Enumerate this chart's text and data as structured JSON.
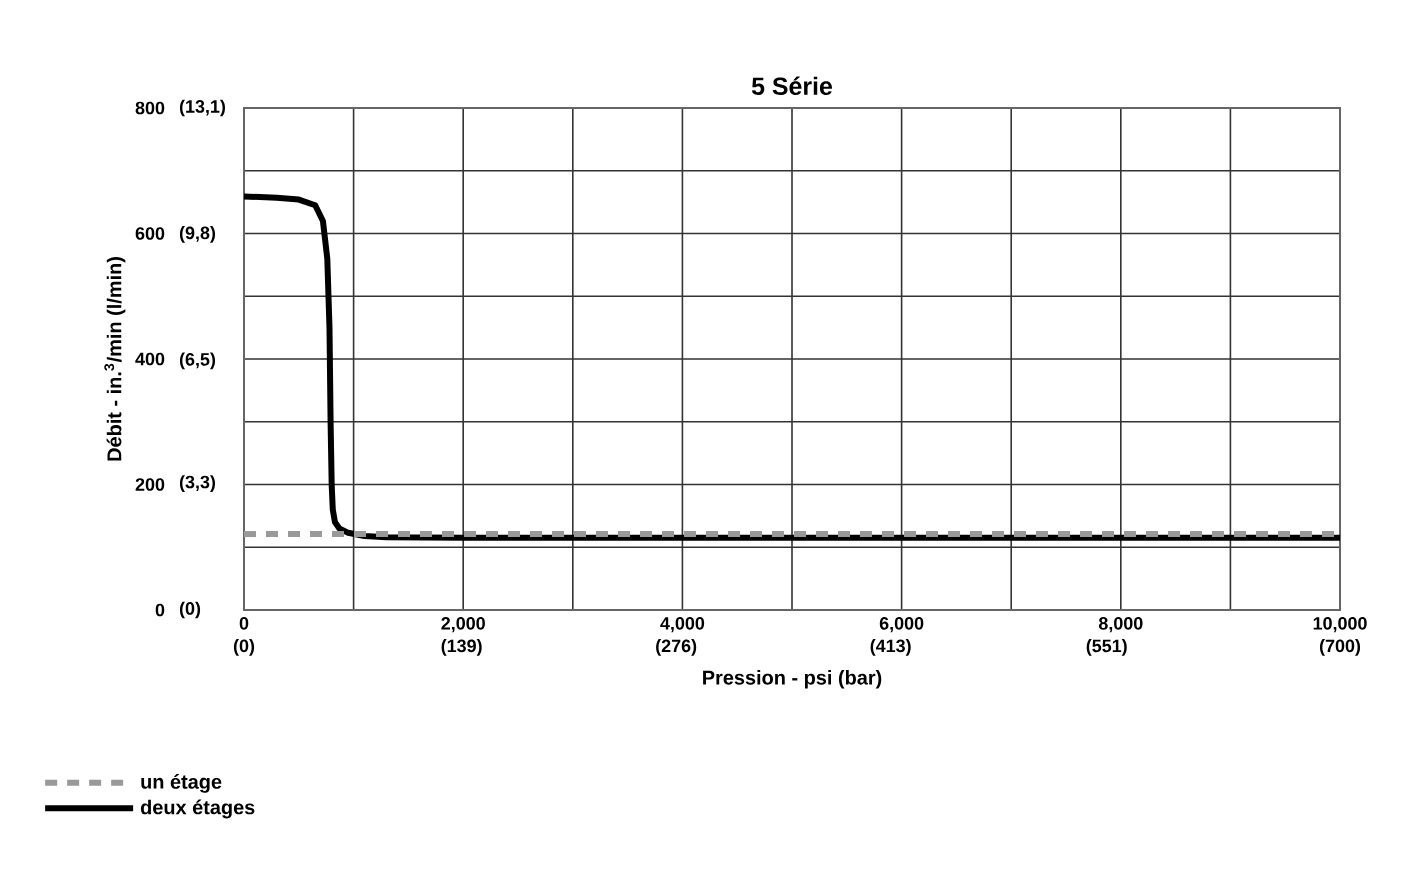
{
  "chart_data": {
    "type": "line",
    "title": "5 Série",
    "xlabel": "Pression - psi (bar)",
    "ylabel": "Débit - in.$^{3}$/min (l/min)",
    "xlim": [
      0,
      10000
    ],
    "ylim": [
      0,
      800
    ],
    "xticks": [
      0,
      {
        "value": 1000,
        "label": null
      },
      {
        "value": 2000,
        "label": "2,000"
      },
      {
        "value": 3000,
        "label": null
      },
      {
        "value": 4000,
        "label": "4,000"
      },
      {
        "value": 5000,
        "label": null
      },
      {
        "value": 6000,
        "label": "6,000"
      },
      {
        "value": 7000,
        "label": null
      },
      {
        "value": 8000,
        "label": "8,000"
      },
      {
        "value": 9000,
        "label": null
      },
      {
        "value": 10000,
        "label": "10,000"
      }
    ],
    "yticks": [
      0,
      {
        "value": 100,
        "label": null
      },
      200,
      {
        "value": 300,
        "label": null
      },
      400,
      {
        "value": 500,
        "label": null
      },
      600,
      {
        "value": 700,
        "label": null
      },
      800
    ],
    "x2lim": [
      0,
      700
    ],
    "x2ticks": [
      {
        "value": 0,
        "label": "(0)"
      },
      {
        "value": 139,
        "label": "(139)"
      },
      {
        "value": 276,
        "label": "(276)"
      },
      {
        "value": 413,
        "label": "(413)"
      },
      {
        "value": 551,
        "label": "(551)"
      },
      {
        "value": 700,
        "label": "(700)"
      }
    ],
    "y2lim": [
      0,
      13.1
    ],
    "y2ticks": [
      {
        "value": 0,
        "label": "(0)"
      },
      {
        "value": 3.3,
        "label": "(3,3)"
      },
      {
        "value": 6.5,
        "label": "(6,5)"
      },
      {
        "value": 9.8,
        "label": "(9,8)"
      },
      {
        "value": 13.1,
        "label": "(13,1)"
      }
    ],
    "grid": true,
    "legend": "bottom left",
    "series": [
      {
        "name": "un étage",
        "color": "#999999",
        "line_style": "dashed",
        "x": [
          0,
          10000
        ],
        "values": [
          121,
          121
        ]
      },
      {
        "name": "deux étages",
        "color": "#000000",
        "line_style": "solid",
        "x": [
          0,
          300,
          500,
          650,
          720,
          760,
          780,
          790,
          800,
          810,
          830,
          870,
          950,
          1100,
          1300,
          2000,
          4000,
          6000,
          8000,
          10000
        ],
        "values": [
          659,
          657,
          654,
          645,
          620,
          560,
          450,
          300,
          200,
          160,
          140,
          130,
          123,
          118,
          116,
          115,
          115,
          115,
          115,
          115
        ]
      }
    ]
  }
}
